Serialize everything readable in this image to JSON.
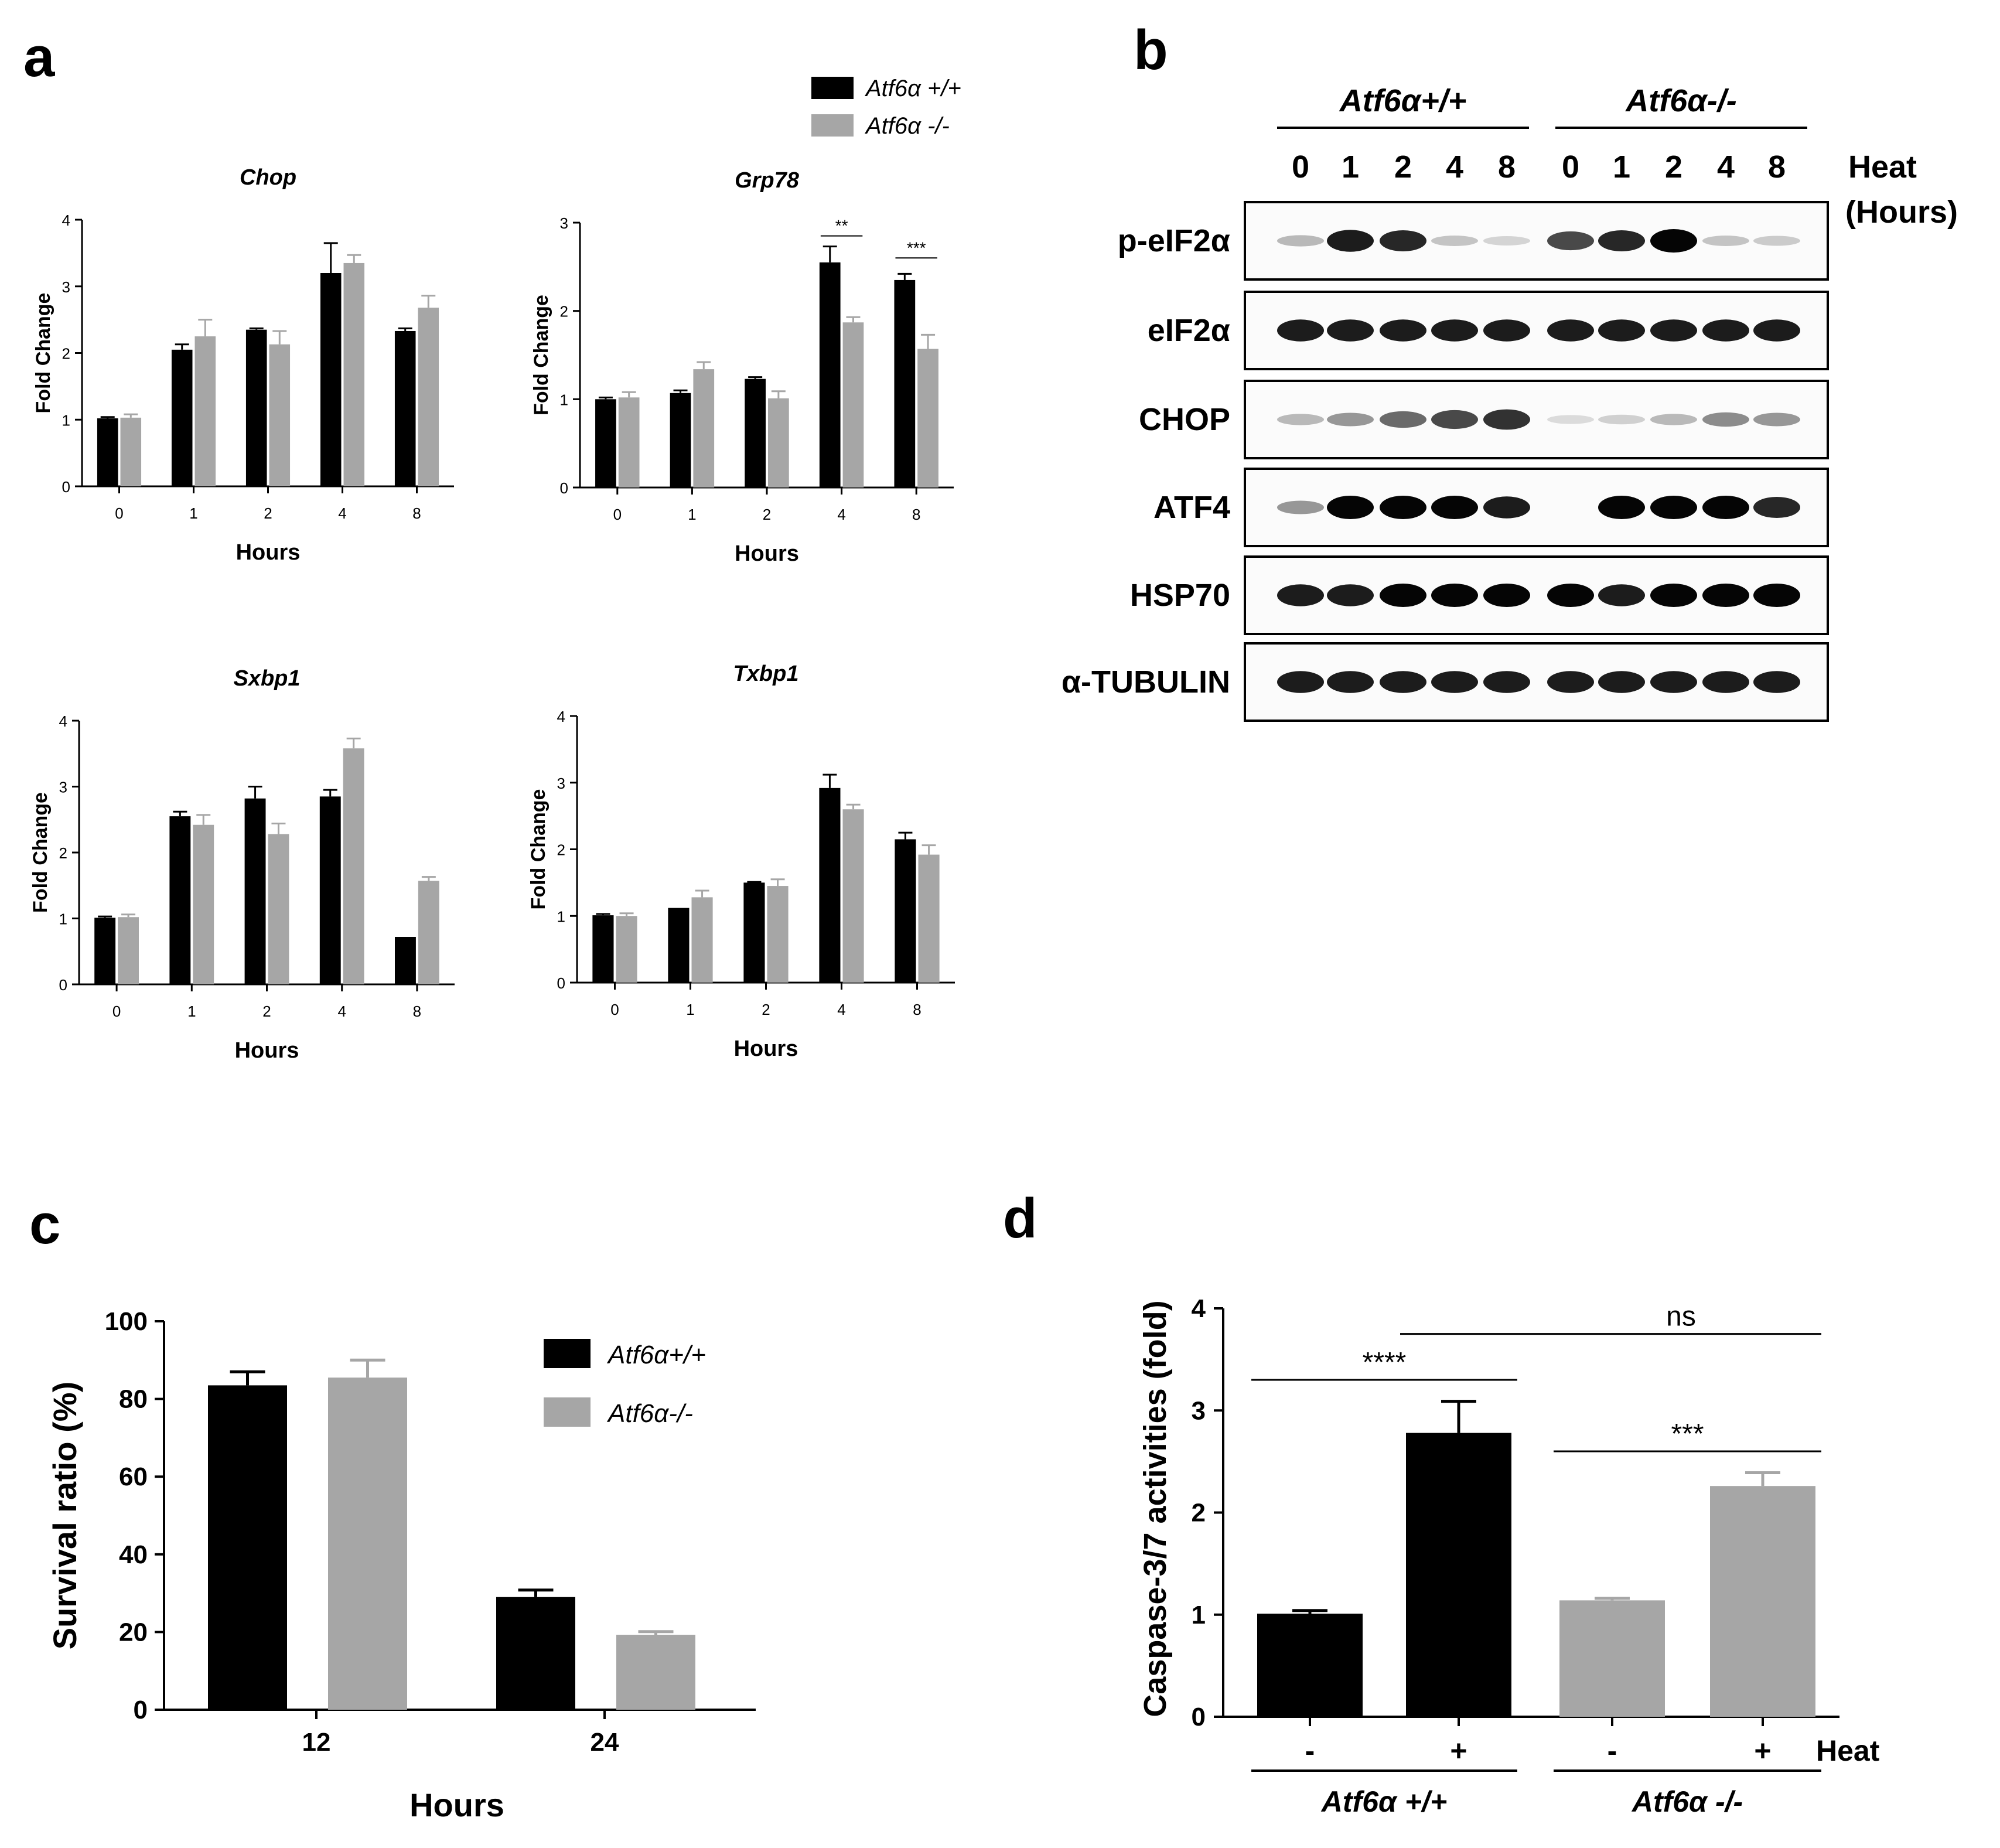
{
  "colors": {
    "wt": "#000000",
    "ko": "#a6a6a6",
    "axis": "#000000",
    "text": "#000000"
  },
  "panel_labels": {
    "a": "a",
    "b": "b",
    "c": "c",
    "d": "d"
  },
  "legend_a": [
    {
      "label": "Atf6α +/+",
      "color": "#000000"
    },
    {
      "label": "Atf6α -/-",
      "color": "#a6a6a6"
    }
  ],
  "chart_data": [
    {
      "id": "chop",
      "type": "bar",
      "title": "Chop",
      "xlabel": "Hours",
      "ylabel": "Fold Change",
      "categories": [
        "0",
        "1",
        "2",
        "4",
        "8"
      ],
      "ylim": [
        0,
        4
      ],
      "yticks": [
        0,
        1,
        2,
        3,
        4
      ],
      "series": [
        {
          "name": "Atf6α +/+",
          "values": [
            1.02,
            2.05,
            2.35,
            3.2,
            2.33
          ],
          "errors": [
            0.02,
            0.08,
            0.02,
            0.45,
            0.04
          ]
        },
        {
          "name": "Atf6α -/-",
          "values": [
            1.03,
            2.25,
            2.13,
            3.35,
            2.68
          ],
          "errors": [
            0.05,
            0.25,
            0.2,
            0.12,
            0.18
          ]
        }
      ],
      "significance": []
    },
    {
      "id": "grp78",
      "type": "bar",
      "title": "Grp78",
      "xlabel": "Hours",
      "ylabel": "Fold Change",
      "categories": [
        "0",
        "1",
        "2",
        "4",
        "8"
      ],
      "ylim": [
        0,
        3
      ],
      "yticks": [
        0,
        1,
        2,
        3
      ],
      "series": [
        {
          "name": "Atf6α +/+",
          "values": [
            1.0,
            1.07,
            1.23,
            2.55,
            2.35
          ],
          "errors": [
            0.02,
            0.03,
            0.02,
            0.18,
            0.07
          ]
        },
        {
          "name": "Atf6α -/-",
          "values": [
            1.02,
            1.34,
            1.01,
            1.87,
            1.57
          ],
          "errors": [
            0.06,
            0.08,
            0.08,
            0.06,
            0.16
          ]
        }
      ],
      "significance": [
        {
          "category": 3,
          "label": "**",
          "y": 2.85
        },
        {
          "category": 4,
          "label": "***",
          "y": 2.6
        }
      ]
    },
    {
      "id": "sxbp1",
      "type": "bar",
      "title": "Sxbp1",
      "xlabel": "Hours",
      "ylabel": "Fold Change",
      "categories": [
        "0",
        "1",
        "2",
        "4",
        "8"
      ],
      "ylim": [
        0,
        4
      ],
      "yticks": [
        0,
        1,
        2,
        3,
        4
      ],
      "series": [
        {
          "name": "Atf6α +/+",
          "values": [
            1.01,
            2.55,
            2.82,
            2.85,
            0.72
          ],
          "errors": [
            0.02,
            0.07,
            0.18,
            0.1,
            0.0
          ]
        },
        {
          "name": "Atf6α -/-",
          "values": [
            1.02,
            2.42,
            2.28,
            3.58,
            1.57
          ],
          "errors": [
            0.04,
            0.15,
            0.16,
            0.15,
            0.06
          ]
        }
      ],
      "significance": []
    },
    {
      "id": "txbp1",
      "type": "bar",
      "title": "Txbp1",
      "xlabel": "Hours",
      "ylabel": "Fold Change",
      "categories": [
        "0",
        "1",
        "2",
        "4",
        "8"
      ],
      "ylim": [
        0,
        4
      ],
      "yticks": [
        0,
        1,
        2,
        3,
        4
      ],
      "series": [
        {
          "name": "Atf6α +/+",
          "values": [
            1.01,
            1.12,
            1.5,
            2.92,
            2.15
          ],
          "errors": [
            0.02,
            0.0,
            0.01,
            0.2,
            0.1
          ]
        },
        {
          "name": "Atf6α -/-",
          "values": [
            1.0,
            1.28,
            1.45,
            2.6,
            1.92
          ],
          "errors": [
            0.04,
            0.1,
            0.1,
            0.07,
            0.14
          ]
        }
      ],
      "significance": []
    },
    {
      "id": "survival",
      "type": "bar",
      "title": "",
      "xlabel": "Hours",
      "ylabel": "Survival ratio (%)",
      "categories": [
        "12",
        "24"
      ],
      "ylim": [
        0,
        100
      ],
      "yticks": [
        0,
        20,
        40,
        60,
        80,
        100
      ],
      "legend": [
        {
          "label": "Atf6α+/+",
          "color": "#000000"
        },
        {
          "label": "Atf6α-/-",
          "color": "#a6a6a6"
        }
      ],
      "series": [
        {
          "name": "Atf6α+/+",
          "values": [
            83.5,
            29.0
          ],
          "errors": [
            3.5,
            1.8
          ]
        },
        {
          "name": "Atf6α-/-",
          "values": [
            85.5,
            19.3
          ],
          "errors": [
            4.5,
            0.8
          ]
        }
      ]
    },
    {
      "id": "caspase",
      "type": "bar",
      "title": "",
      "xlabel": "",
      "ylabel": "Caspase-3/7 activities (fold)",
      "categories": [
        "-",
        "+",
        "-",
        "+"
      ],
      "ylim": [
        0,
        4
      ],
      "yticks": [
        0,
        1,
        2,
        3,
        4
      ],
      "values": [
        1.01,
        2.78,
        1.14,
        2.26
      ],
      "errors": [
        0.03,
        0.31,
        0.02,
        0.13
      ],
      "bar_groups": [
        "wt",
        "wt",
        "ko",
        "ko"
      ],
      "heat_label": "Heat",
      "groups": [
        {
          "label": "Atf6α +/+",
          "bars": [
            0,
            1
          ]
        },
        {
          "label": "Atf6α -/-",
          "bars": [
            2,
            3
          ]
        }
      ],
      "significance": [
        {
          "from": 0,
          "to": 1,
          "label": "****",
          "y": 3.3
        },
        {
          "from": 2,
          "to": 3,
          "label": "***",
          "y": 2.6
        },
        {
          "from": 1,
          "to": 3,
          "label": "ns",
          "y": 3.75
        }
      ]
    }
  ],
  "blot": {
    "groups": [
      {
        "label": "Atf6α+/+"
      },
      {
        "label": "Atf6α-/-"
      }
    ],
    "lanes": [
      "0",
      "1",
      "2",
      "4",
      "8",
      "0",
      "1",
      "2",
      "4",
      "8"
    ],
    "heat_label": "Heat",
    "hours_label": "(Hours)",
    "rows": [
      {
        "label": "p-eIF2α",
        "intensities": [
          0.2,
          0.9,
          0.85,
          0.15,
          0.08,
          0.7,
          0.85,
          1.0,
          0.15,
          0.12
        ]
      },
      {
        "label": "eIF2α",
        "intensities": [
          0.9,
          0.9,
          0.9,
          0.9,
          0.9,
          0.9,
          0.9,
          0.9,
          0.9,
          0.9
        ]
      },
      {
        "label": "CHOP",
        "intensities": [
          0.2,
          0.35,
          0.55,
          0.7,
          0.8,
          0.05,
          0.1,
          0.2,
          0.4,
          0.35
        ]
      },
      {
        "label": "ATF4",
        "intensities": [
          0.35,
          1.0,
          1.0,
          1.0,
          0.9,
          0.0,
          1.0,
          1.0,
          1.0,
          0.85
        ]
      },
      {
        "label": "HSP70",
        "intensities": [
          0.9,
          0.9,
          1.0,
          1.0,
          1.0,
          1.0,
          0.9,
          1.0,
          1.0,
          1.0
        ]
      },
      {
        "label": "α-TUBULIN",
        "intensities": [
          0.9,
          0.9,
          0.9,
          0.9,
          0.9,
          0.9,
          0.9,
          0.9,
          0.9,
          0.9
        ]
      }
    ]
  }
}
